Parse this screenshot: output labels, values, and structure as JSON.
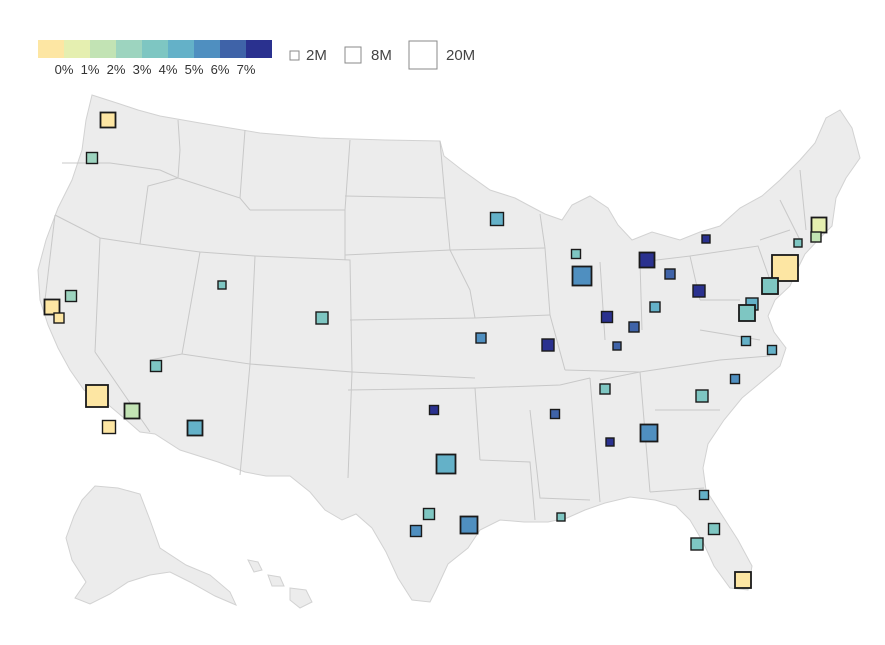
{
  "legend": {
    "color_scale": {
      "colors": [
        "#fde6a3",
        "#e5efb0",
        "#c2e3b4",
        "#9dd4bf",
        "#7ec6c2",
        "#64b1c8",
        "#4f8fc0",
        "#3f63a8",
        "#2a318f"
      ],
      "labels": [
        "0%",
        "1%",
        "2%",
        "3%",
        "4%",
        "5%",
        "6%",
        "7%"
      ]
    },
    "size_scale": [
      {
        "label": "2M"
      },
      {
        "label": "8M"
      },
      {
        "label": "20M"
      }
    ]
  },
  "map": {
    "land_color": "#ececec",
    "border_color": "#c8c8c8",
    "marker_stroke": "#1a1a1a"
  }
}
